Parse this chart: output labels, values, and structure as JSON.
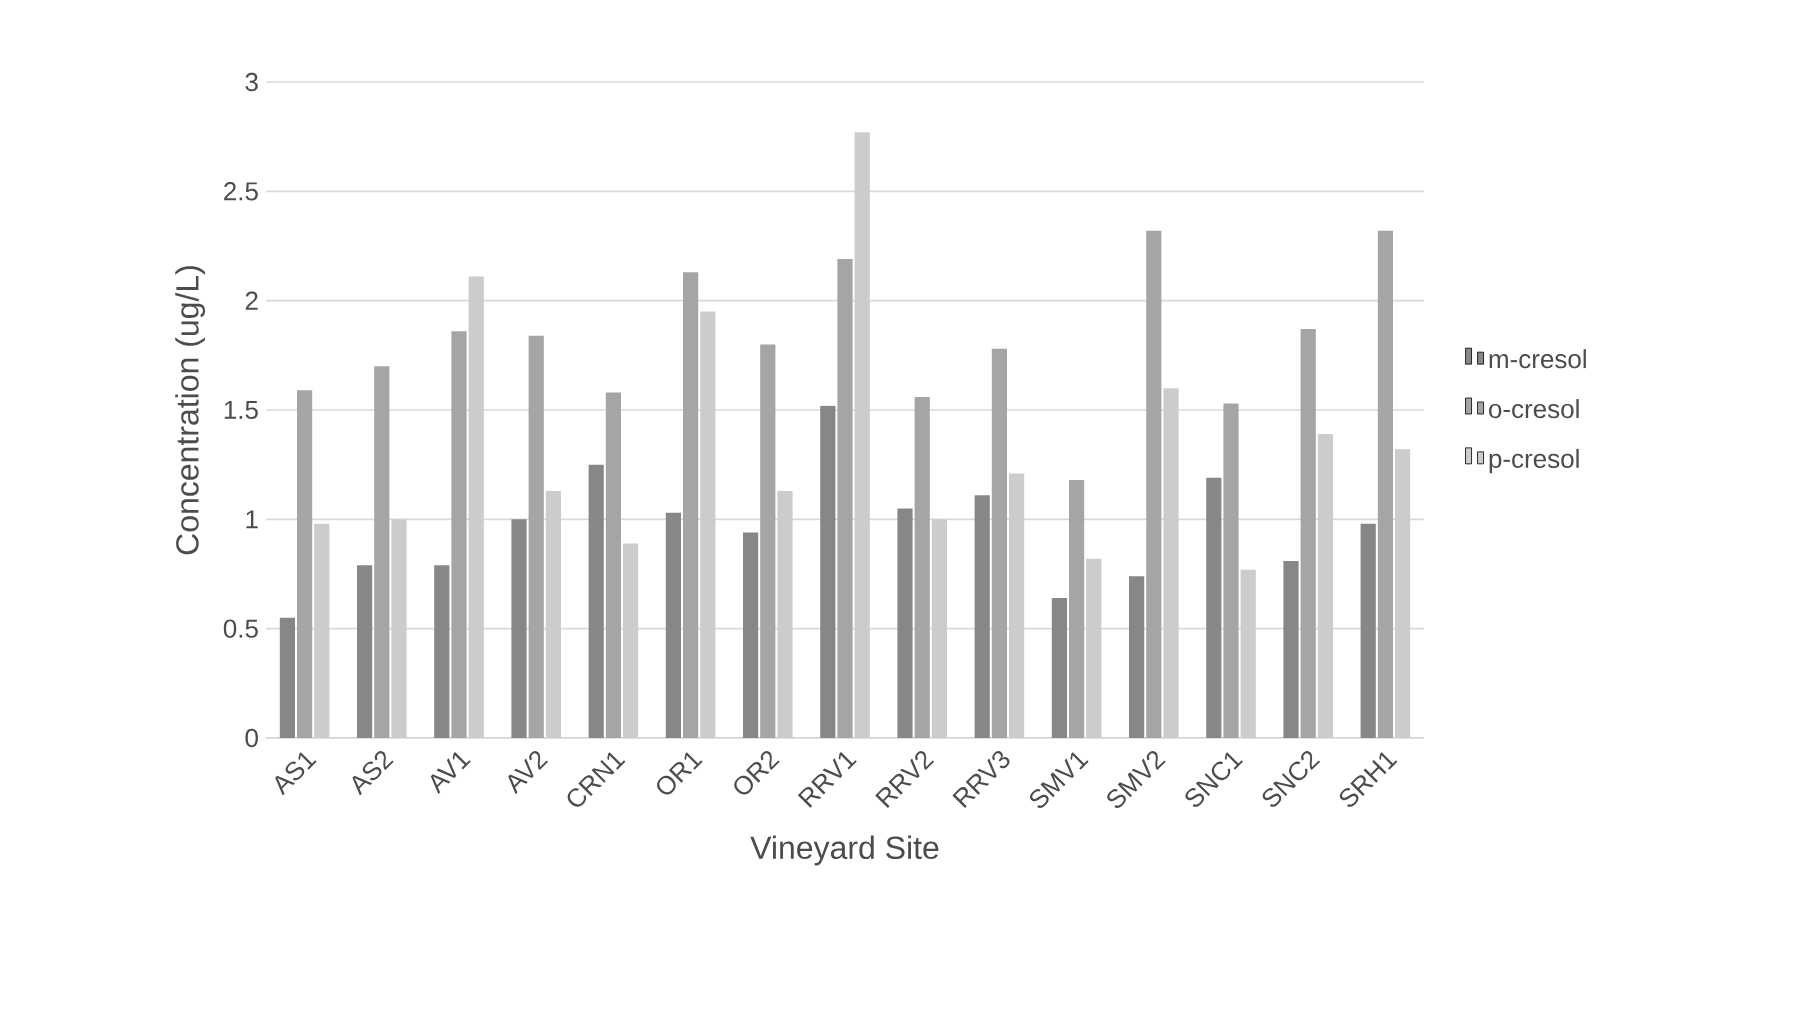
{
  "chart_data": {
    "type": "bar",
    "xlabel": "Vineyard Site",
    "ylabel": "Concentration (ug/L)",
    "categories": [
      "AS1",
      "AS2",
      "AV1",
      "AV2",
      "CRN1",
      "OR1",
      "OR2",
      "RRV1",
      "RRV2",
      "RRV3",
      "SMV1",
      "SMV2",
      "SNC1",
      "SNC2",
      "SRH1"
    ],
    "series": [
      {
        "name": "m-cresol",
        "color": "#878787",
        "values": [
          0.55,
          0.79,
          0.79,
          1.0,
          1.25,
          1.03,
          0.94,
          1.52,
          1.05,
          1.11,
          0.64,
          0.74,
          1.19,
          0.81,
          0.98
        ]
      },
      {
        "name": "o-cresol",
        "color": "#a5a5a5",
        "values": [
          1.59,
          1.7,
          1.86,
          1.84,
          1.58,
          2.13,
          1.8,
          2.19,
          1.56,
          1.78,
          1.18,
          2.32,
          1.53,
          1.87,
          2.32
        ]
      },
      {
        "name": "p-cresol",
        "color": "#cccccc",
        "values": [
          0.98,
          1.0,
          2.11,
          1.13,
          0.89,
          1.95,
          1.13,
          2.77,
          1.0,
          1.21,
          0.82,
          1.6,
          0.77,
          1.39,
          1.32
        ]
      }
    ],
    "ylim": [
      0,
      3
    ],
    "yticks": [
      0,
      0.5,
      1,
      1.5,
      2,
      2.5,
      3
    ],
    "grid": "y",
    "legend": "right"
  }
}
